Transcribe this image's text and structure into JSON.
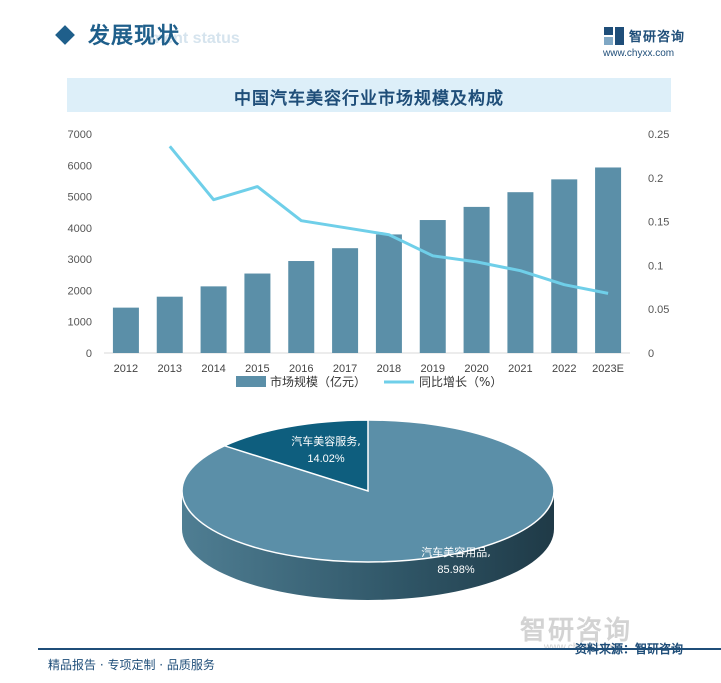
{
  "header": {
    "title": "发展现状",
    "ghost_text": "ment status"
  },
  "logo": {
    "name": "智研咨询",
    "url": "www.chyxx.com"
  },
  "watermark": {
    "name": "智研咨询",
    "url": "www.chyxx.com"
  },
  "footer": {
    "left": "精品报告 · 专项定制 · 品质服务",
    "source": "资料来源：智研咨询"
  },
  "colors": {
    "bar": "#5b8fa8",
    "line": "#6fcfe9",
    "pie_large": "#5b8fa8",
    "pie_small": "#0e5e7e",
    "brand": "#1f4e79"
  },
  "chart_data": [
    {
      "type": "bar",
      "title": "中国汽车美容行业市场规模及构成",
      "categories": [
        "2012",
        "2013",
        "2014",
        "2015",
        "2016",
        "2017",
        "2018",
        "2019",
        "2020",
        "2021",
        "2022",
        "2023E"
      ],
      "series": [
        {
          "name": "市场规模（亿元）",
          "type": "bar",
          "axis": "left",
          "values": [
            1450,
            1800,
            2130,
            2540,
            2940,
            3350,
            3790,
            4250,
            4670,
            5140,
            5550,
            5930
          ]
        },
        {
          "name": "同比增长（%）",
          "type": "line",
          "axis": "right",
          "values": [
            null,
            0.236,
            0.175,
            0.19,
            0.151,
            0.143,
            0.135,
            0.111,
            0.104,
            0.094,
            0.078,
            0.068
          ]
        }
      ],
      "ylim_left": [
        0,
        7000
      ],
      "yticks_left": [
        "0",
        "1000",
        "2000",
        "3000",
        "4000",
        "5000",
        "6000",
        "7000"
      ],
      "ylim_right": [
        0,
        0.25
      ],
      "yticks_right": [
        "0",
        "0.05",
        "0.1",
        "0.15",
        "0.2",
        "0.25"
      ],
      "grid": false,
      "legend": "bottom"
    },
    {
      "type": "pie",
      "slices": [
        {
          "label": "汽车美容服务,",
          "value_text": "14.02%",
          "value": 14.02
        },
        {
          "label": "汽车美容用品,",
          "value_text": "85.98%",
          "value": 85.98
        }
      ]
    }
  ]
}
